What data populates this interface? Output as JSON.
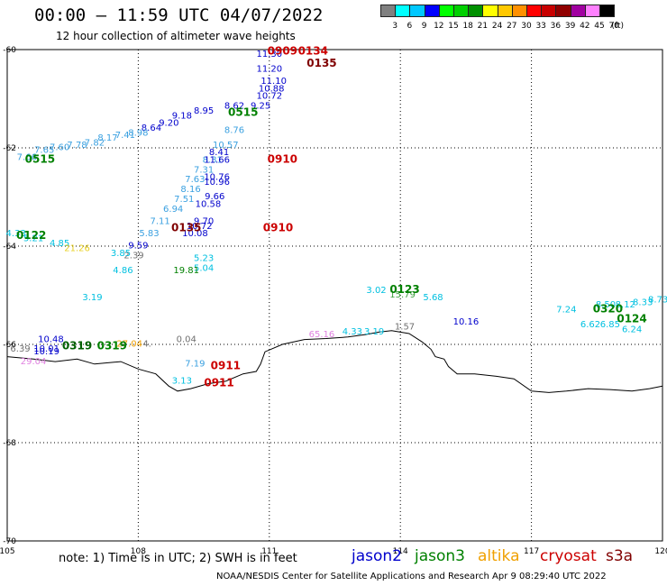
{
  "title": "00:00 – 11:59 UTC 04/07/2022",
  "subtitle": "12 hour collection of altimeter wave heights",
  "colorbar": {
    "unit": "(ft)",
    "labels": [
      "3",
      "6",
      "9",
      "12",
      "15",
      "18",
      "21",
      "24",
      "27",
      "30",
      "33",
      "36",
      "39",
      "42",
      "45",
      "70"
    ],
    "colors": [
      "#808080",
      "#00ffff",
      "#00c8ff",
      "#0000ff",
      "#00ff00",
      "#00d000",
      "#009000",
      "#ffff00",
      "#ffc800",
      "#ff9000",
      "#ff0000",
      "#c80000",
      "#900000",
      "#a000a0",
      "#ff80ff",
      "#000000"
    ]
  },
  "axes": {
    "lat_labels": [
      "-60",
      "-62",
      "-64",
      "-66",
      "-68",
      "-70"
    ],
    "lon_labels": [
      "105",
      "108",
      "111",
      "114",
      "117",
      "120"
    ],
    "lat_range": [
      -70,
      -60
    ],
    "lon_range": [
      105,
      120
    ]
  },
  "track_colors": {
    "gray": "#707070",
    "cyan": "#00c0e0",
    "blue": "#0000cc",
    "lightblue": "#3aa0e0",
    "green": "#008000",
    "lime": "#40a040",
    "red": "#cc0000",
    "darkred": "#800000",
    "orange": "#f0a000",
    "yellow": "#e8d020",
    "pink": "#e080e0",
    "darkgreen": "#006000"
  },
  "observations": [
    {
      "lon": 111.0,
      "lat": -60.15,
      "value": "11.30",
      "color": "blue"
    },
    {
      "lon": 111.0,
      "lat": -60.45,
      "value": "11.20",
      "color": "blue"
    },
    {
      "lon": 111.1,
      "lat": -60.7,
      "value": "11.10",
      "color": "blue"
    },
    {
      "lon": 111.05,
      "lat": -60.85,
      "value": "10.88",
      "color": "blue"
    },
    {
      "lon": 111.0,
      "lat": -61.0,
      "value": "10.72",
      "color": "blue"
    },
    {
      "lon": 110.8,
      "lat": -61.2,
      "value": "9.25",
      "color": "blue"
    },
    {
      "lon": 110.2,
      "lat": -61.2,
      "value": "8.62",
      "color": "blue"
    },
    {
      "lon": 109.5,
      "lat": -61.3,
      "value": "8.95",
      "color": "blue"
    },
    {
      "lon": 109.0,
      "lat": -61.4,
      "value": "9.18",
      "color": "blue"
    },
    {
      "lon": 108.7,
      "lat": -61.55,
      "value": "9.20",
      "color": "blue"
    },
    {
      "lon": 108.3,
      "lat": -61.65,
      "value": "8.64",
      "color": "blue"
    },
    {
      "lon": 108.0,
      "lat": -61.75,
      "value": "8.98",
      "color": "lightblue"
    },
    {
      "lon": 107.7,
      "lat": -61.8,
      "value": "7.41",
      "color": "lightblue"
    },
    {
      "lon": 107.3,
      "lat": -61.85,
      "value": "8.17",
      "color": "lightblue"
    },
    {
      "lon": 107.0,
      "lat": -61.95,
      "value": "7.82",
      "color": "lightblue"
    },
    {
      "lon": 106.6,
      "lat": -62.0,
      "value": "7.78",
      "color": "lightblue"
    },
    {
      "lon": 106.2,
      "lat": -62.05,
      "value": "7.60",
      "color": "lightblue"
    },
    {
      "lon": 105.85,
      "lat": -62.1,
      "value": "7.65",
      "color": "lightblue"
    },
    {
      "lon": 105.45,
      "lat": -62.25,
      "value": "7.66",
      "color": "lightblue"
    },
    {
      "lon": 110.2,
      "lat": -61.7,
      "value": "8.76",
      "color": "lightblue"
    },
    {
      "lon": 110.0,
      "lat": -62.0,
      "value": "10.57",
      "color": "lightblue"
    },
    {
      "lon": 109.85,
      "lat": -62.15,
      "value": "8.41",
      "color": "blue"
    },
    {
      "lon": 109.7,
      "lat": -62.3,
      "value": "8.31",
      "color": "lightblue"
    },
    {
      "lon": 109.5,
      "lat": -62.5,
      "value": "7.31",
      "color": "lightblue"
    },
    {
      "lon": 109.3,
      "lat": -62.7,
      "value": "7.63",
      "color": "lightblue"
    },
    {
      "lon": 109.2,
      "lat": -62.9,
      "value": "8.16",
      "color": "lightblue"
    },
    {
      "lon": 109.05,
      "lat": -63.1,
      "value": "7.51",
      "color": "lightblue"
    },
    {
      "lon": 108.8,
      "lat": -63.3,
      "value": "6.94",
      "color": "lightblue"
    },
    {
      "lon": 108.5,
      "lat": -63.55,
      "value": "7.11",
      "color": "lightblue"
    },
    {
      "lon": 108.25,
      "lat": -63.8,
      "value": "5.83",
      "color": "lightblue"
    },
    {
      "lon": 109.8,
      "lat": -62.3,
      "value": "11.66",
      "color": "blue"
    },
    {
      "lon": 109.8,
      "lat": -62.65,
      "value": "10.76",
      "color": "blue"
    },
    {
      "lon": 109.8,
      "lat": -62.75,
      "value": "10.96",
      "color": "blue"
    },
    {
      "lon": 109.75,
      "lat": -63.05,
      "value": "9.66",
      "color": "blue"
    },
    {
      "lon": 109.6,
      "lat": -63.2,
      "value": "10.58",
      "color": "blue"
    },
    {
      "lon": 109.5,
      "lat": -63.55,
      "value": "9.70",
      "color": "blue"
    },
    {
      "lon": 109.4,
      "lat": -63.65,
      "value": "10.72",
      "color": "blue"
    },
    {
      "lon": 109.3,
      "lat": -63.8,
      "value": "10.08",
      "color": "blue"
    },
    {
      "lon": 108.0,
      "lat": -64.05,
      "value": "9.59",
      "color": "blue"
    },
    {
      "lon": 107.9,
      "lat": -64.25,
      "value": "2.39",
      "color": "gray"
    },
    {
      "lon": 107.6,
      "lat": -64.2,
      "value": "3.85",
      "color": "cyan"
    },
    {
      "lon": 107.65,
      "lat": -64.55,
      "value": "4.86",
      "color": "cyan"
    },
    {
      "lon": 105.2,
      "lat": -63.8,
      "value": "4.33",
      "color": "cyan"
    },
    {
      "lon": 105.6,
      "lat": -63.9,
      "value": "5.21",
      "color": "cyan"
    },
    {
      "lon": 106.2,
      "lat": -64.0,
      "value": "4.85",
      "color": "cyan"
    },
    {
      "lon": 106.6,
      "lat": -64.1,
      "value": "21.26",
      "color": "yellow"
    },
    {
      "lon": 109.5,
      "lat": -64.3,
      "value": "5.23",
      "color": "cyan"
    },
    {
      "lon": 109.5,
      "lat": -64.5,
      "value": "5.04",
      "color": "cyan"
    },
    {
      "lon": 109.1,
      "lat": -64.55,
      "value": "19.81",
      "color": "green"
    },
    {
      "lon": 106.95,
      "lat": -65.1,
      "value": "3.19",
      "color": "cyan"
    },
    {
      "lon": 105.3,
      "lat": -66.15,
      "value": "6.39",
      "color": "gray"
    },
    {
      "lon": 106.0,
      "lat": -65.95,
      "value": "10.48",
      "color": "blue"
    },
    {
      "lon": 105.9,
      "lat": -66.15,
      "value": "10.01",
      "color": "blue"
    },
    {
      "lon": 105.9,
      "lat": -66.2,
      "value": "10.19",
      "color": "blue"
    },
    {
      "lon": 105.6,
      "lat": -66.4,
      "value": "29.04",
      "color": "pink"
    },
    {
      "lon": 107.8,
      "lat": -66.05,
      "value": "27.04",
      "color": "orange"
    },
    {
      "lon": 108.2,
      "lat": -66.05,
      "value": "4.",
      "color": "gray"
    },
    {
      "lon": 109.1,
      "lat": -65.95,
      "value": "0.04",
      "color": "gray"
    },
    {
      "lon": 109.3,
      "lat": -66.45,
      "value": "7.19",
      "color": "lightblue"
    },
    {
      "lon": 109.0,
      "lat": -66.8,
      "value": "3.13",
      "color": "cyan"
    },
    {
      "lon": 112.2,
      "lat": -65.85,
      "value": "65.16",
      "color": "pink"
    },
    {
      "lon": 112.9,
      "lat": -65.8,
      "value": "4.33",
      "color": "cyan"
    },
    {
      "lon": 113.4,
      "lat": -65.8,
      "value": "3.19",
      "color": "cyan"
    },
    {
      "lon": 114.1,
      "lat": -65.7,
      "value": "1.57",
      "color": "gray"
    },
    {
      "lon": 113.45,
      "lat": -64.95,
      "value": "3.02",
      "color": "cyan"
    },
    {
      "lon": 114.05,
      "lat": -65.05,
      "value": "15.79",
      "color": "lime"
    },
    {
      "lon": 114.75,
      "lat": -65.1,
      "value": "5.68",
      "color": "cyan"
    },
    {
      "lon": 115.5,
      "lat": -65.6,
      "value": "10.16",
      "color": "blue"
    },
    {
      "lon": 117.8,
      "lat": -65.35,
      "value": "7.24",
      "color": "cyan"
    },
    {
      "lon": 118.35,
      "lat": -65.65,
      "value": "6.62",
      "color": "cyan"
    },
    {
      "lon": 118.8,
      "lat": -65.65,
      "value": "6.85",
      "color": "cyan"
    },
    {
      "lon": 119.3,
      "lat": -65.75,
      "value": "6.24",
      "color": "cyan"
    },
    {
      "lon": 118.7,
      "lat": -65.25,
      "value": "8.50",
      "color": "cyan"
    },
    {
      "lon": 119.15,
      "lat": -65.25,
      "value": "8.12",
      "color": "cyan"
    },
    {
      "lon": 119.55,
      "lat": -65.2,
      "value": "8.33",
      "color": "cyan"
    },
    {
      "lon": 119.9,
      "lat": -65.15,
      "value": "8.73",
      "color": "cyan"
    }
  ],
  "pass_labels": [
    {
      "lon": 110.4,
      "lat": -61.35,
      "text": "0515",
      "color": "green"
    },
    {
      "lon": 105.75,
      "lat": -62.3,
      "text": "0515",
      "color": "green"
    },
    {
      "lon": 105.55,
      "lat": -63.85,
      "text": "0122",
      "color": "green"
    },
    {
      "lon": 107.4,
      "lat": -66.1,
      "text": "0319",
      "color": "green"
    },
    {
      "lon": 106.6,
      "lat": -66.1,
      "text": "0319",
      "color": "darkgreen"
    },
    {
      "lon": 114.1,
      "lat": -64.95,
      "text": "0123",
      "color": "green"
    },
    {
      "lon": 118.75,
      "lat": -65.35,
      "text": "0320",
      "color": "green"
    },
    {
      "lon": 119.3,
      "lat": -65.55,
      "text": "0124",
      "color": "green"
    },
    {
      "lon": 111.3,
      "lat": -62.3,
      "text": "0910",
      "color": "red"
    },
    {
      "lon": 111.2,
      "lat": -63.7,
      "text": "0910",
      "color": "red"
    },
    {
      "lon": 109.1,
      "lat": -63.7,
      "text": "0135",
      "color": "darkred"
    },
    {
      "lon": 110.0,
      "lat": -66.5,
      "text": "0911",
      "color": "red"
    },
    {
      "lon": 109.85,
      "lat": -66.85,
      "text": "0911",
      "color": "red"
    },
    {
      "lon": 111.3,
      "lat": -60.1,
      "text": "0909",
      "color": "red"
    },
    {
      "lon": 112.0,
      "lat": -60.1,
      "text": "0134",
      "color": "red"
    },
    {
      "lon": 112.2,
      "lat": -60.35,
      "text": "0135",
      "color": "darkred"
    }
  ],
  "legend": [
    {
      "label": "jason2",
      "color": "#0000cc"
    },
    {
      "label": "jason3",
      "color": "#008000"
    },
    {
      "label": "altika",
      "color": "#f0a000"
    },
    {
      "label": "cryosat",
      "color": "#cc0000"
    },
    {
      "label": "s3a",
      "color": "#800000"
    }
  ],
  "footnote": "note: 1) Time is in UTC; 2) SWH is in feet",
  "credit": "NOAA/NESDIS Center for Satellite Applications and Research   Apr  9 08:29:40 UTC 2022"
}
